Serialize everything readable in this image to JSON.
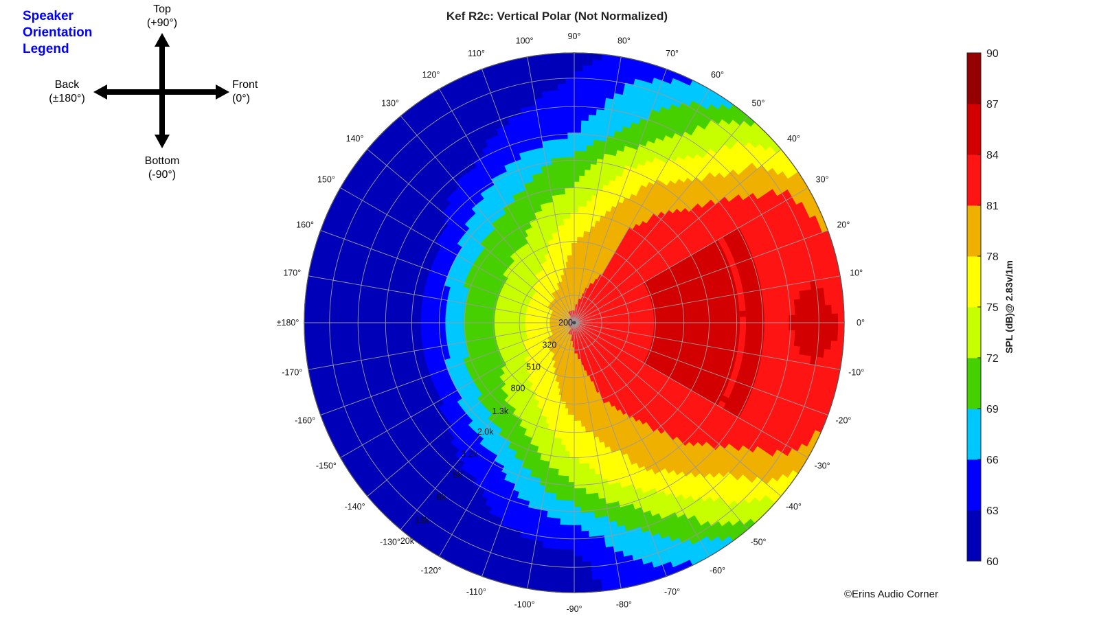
{
  "orientation_legend": {
    "title_lines": [
      "Speaker",
      "Orientation",
      "Legend"
    ],
    "top": [
      "Top",
      "(+90°)"
    ],
    "bottom": [
      "Bottom",
      "(-90°)"
    ],
    "back": [
      "Back",
      "(±180°)"
    ],
    "front": [
      "Front",
      "(0°)"
    ]
  },
  "copyright": "©Erins Audio Corner",
  "chart_data": {
    "type": "heatmap",
    "subtype": "polar-contour",
    "title": "Kef R2c: Vertical Polar (Not Normalized)",
    "angle_ticks": [
      {
        "angle": 0,
        "label": "0°"
      },
      {
        "angle": 10,
        "label": "10°"
      },
      {
        "angle": 20,
        "label": "20°"
      },
      {
        "angle": 30,
        "label": "30°"
      },
      {
        "angle": 40,
        "label": "40°"
      },
      {
        "angle": 50,
        "label": "50°"
      },
      {
        "angle": 60,
        "label": "60°"
      },
      {
        "angle": 70,
        "label": "70°"
      },
      {
        "angle": 80,
        "label": "80°"
      },
      {
        "angle": 90,
        "label": "90°"
      },
      {
        "angle": 100,
        "label": "100°"
      },
      {
        "angle": 110,
        "label": "110°"
      },
      {
        "angle": 120,
        "label": "120°"
      },
      {
        "angle": 130,
        "label": "130°"
      },
      {
        "angle": 140,
        "label": "140°"
      },
      {
        "angle": 150,
        "label": "150°"
      },
      {
        "angle": 160,
        "label": "160°"
      },
      {
        "angle": 170,
        "label": "170°"
      },
      {
        "angle": 180,
        "label": "±180°"
      },
      {
        "angle": -170,
        "label": "-170°"
      },
      {
        "angle": -160,
        "label": "-160°"
      },
      {
        "angle": -150,
        "label": "-150°"
      },
      {
        "angle": -140,
        "label": "-140°"
      },
      {
        "angle": -130,
        "label": "-130°"
      },
      {
        "angle": -120,
        "label": "-120°"
      },
      {
        "angle": -110,
        "label": "-110°"
      },
      {
        "angle": -100,
        "label": "-100°"
      },
      {
        "angle": -90,
        "label": "-90°"
      },
      {
        "angle": -80,
        "label": "-80°"
      },
      {
        "angle": -70,
        "label": "-70°"
      },
      {
        "angle": -60,
        "label": "-60°"
      },
      {
        "angle": -50,
        "label": "-50°"
      },
      {
        "angle": -40,
        "label": "-40°"
      },
      {
        "angle": -30,
        "label": "-30°"
      },
      {
        "angle": -20,
        "label": "-20°"
      },
      {
        "angle": -10,
        "label": "-10°"
      }
    ],
    "frequency_ticks": [
      "200",
      "320",
      "510",
      "800",
      "1.3k",
      "2.0k",
      "3.2k",
      "5k",
      "8k",
      "13k",
      "20k"
    ],
    "frequency_range_hz": [
      200,
      20000
    ],
    "frequency_scale": "log",
    "colorbar": {
      "label": "SPL (dB)@ 2.83v/1m",
      "ticks": [
        60,
        63,
        66,
        69,
        72,
        75,
        78,
        81,
        84,
        87,
        90
      ],
      "range": [
        60,
        90
      ],
      "colors": [
        "#0000b8",
        "#0000ff",
        "#00c8ff",
        "#46d000",
        "#c8ff00",
        "#ffff00",
        "#f0b000",
        "#ff1414",
        "#d20000",
        "#960000"
      ]
    },
    "spl_db_by_angle_and_frequency": {
      "frequencies_hz": [
        200,
        320,
        510,
        800,
        1300,
        2000,
        3200,
        5000,
        8000,
        13000,
        20000
      ],
      "rows": [
        {
          "angle": 0,
          "spl": [
            82,
            82,
            83,
            84,
            84,
            84,
            84,
            84,
            84,
            85,
            84
          ]
        },
        {
          "angle": 30,
          "spl": [
            82,
            82,
            83,
            84,
            84,
            84,
            84,
            84,
            83,
            82,
            79
          ]
        },
        {
          "angle": 60,
          "spl": [
            82,
            82,
            81,
            81,
            81,
            80,
            78,
            75,
            72,
            70,
            66
          ]
        },
        {
          "angle": 90,
          "spl": [
            82,
            80,
            79,
            78,
            75,
            72,
            70,
            66,
            64,
            63,
            62
          ]
        },
        {
          "angle": 120,
          "spl": [
            82,
            79,
            76,
            73,
            71,
            69,
            66,
            63,
            62,
            61,
            61
          ]
        },
        {
          "angle": 150,
          "spl": [
            82,
            78,
            74,
            72,
            70,
            66,
            62,
            61,
            61,
            60,
            60
          ]
        },
        {
          "angle": 180,
          "spl": [
            82,
            78,
            74,
            72,
            69,
            65,
            62,
            61,
            61,
            60,
            60
          ]
        },
        {
          "angle": -150,
          "spl": [
            82,
            78,
            75,
            72,
            70,
            66,
            62,
            61,
            61,
            60,
            60
          ]
        },
        {
          "angle": -120,
          "spl": [
            82,
            79,
            77,
            75,
            72,
            69,
            65,
            63,
            62,
            61,
            61
          ]
        },
        {
          "angle": -90,
          "spl": [
            82,
            81,
            80,
            79,
            77,
            75,
            72,
            68,
            64,
            62,
            62
          ]
        },
        {
          "angle": -60,
          "spl": [
            82,
            82,
            82,
            82,
            81,
            80,
            79,
            76,
            73,
            70,
            66
          ]
        },
        {
          "angle": -30,
          "spl": [
            82,
            82,
            83,
            84,
            84,
            84,
            84,
            84,
            83,
            82,
            80
          ]
        }
      ]
    }
  }
}
